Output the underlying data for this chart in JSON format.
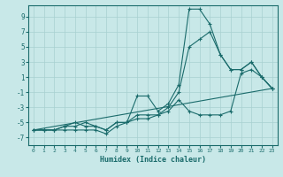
{
  "xlabel": "Humidex (Indice chaleur)",
  "bg_color": "#c8e8e8",
  "grid_color": "#a8d0d0",
  "line_color": "#1a6b6b",
  "xlim": [
    -0.5,
    23.5
  ],
  "ylim": [
    -8,
    10.5
  ],
  "yticks": [
    -7,
    -5,
    -3,
    -1,
    1,
    3,
    5,
    7,
    9
  ],
  "xticks": [
    0,
    1,
    2,
    3,
    4,
    5,
    6,
    7,
    8,
    9,
    10,
    11,
    12,
    13,
    14,
    15,
    16,
    17,
    18,
    19,
    20,
    21,
    22,
    23
  ],
  "series": [
    {
      "x": [
        0,
        1,
        2,
        3,
        4,
        5,
        6,
        7,
        8,
        9,
        10,
        11,
        12,
        13,
        14,
        15,
        16,
        17,
        18,
        19,
        20,
        21,
        22,
        23
      ],
      "y": [
        -6,
        -6,
        -6,
        -6,
        -6,
        -6,
        -6,
        -6.5,
        -5.5,
        -5,
        -1.5,
        -1.5,
        -3.5,
        -2.5,
        0,
        10,
        10,
        8,
        4,
        2,
        2,
        3,
        1,
        -0.5
      ],
      "marker": true
    },
    {
      "x": [
        0,
        1,
        2,
        3,
        4,
        5,
        6,
        7,
        8,
        9,
        10,
        11,
        12,
        13,
        14,
        15,
        16,
        17,
        18,
        19,
        20,
        21,
        22,
        23
      ],
      "y": [
        -6,
        -6,
        -6,
        -5.5,
        -5.5,
        -5,
        -5.5,
        -6,
        -5,
        -5,
        -4,
        -4,
        -4,
        -3,
        -1,
        5,
        6,
        7,
        4,
        2,
        2,
        3,
        1,
        -0.5
      ],
      "marker": true
    },
    {
      "x": [
        0,
        1,
        2,
        3,
        4,
        5,
        6,
        7,
        8,
        9,
        10,
        11,
        12,
        13,
        14,
        15,
        16,
        17,
        18,
        19,
        20,
        21,
        22,
        23
      ],
      "y": [
        -6,
        -6,
        -6,
        -5.5,
        -5,
        -5.5,
        -5.5,
        -6,
        -5,
        -5,
        -4.5,
        -4.5,
        -4,
        -3.5,
        -2,
        -3.5,
        -4,
        -4,
        -4,
        -3.5,
        1.5,
        2,
        1,
        -0.5
      ],
      "marker": true
    },
    {
      "x": [
        0,
        23
      ],
      "y": [
        -6,
        -0.5
      ],
      "marker": false
    }
  ]
}
